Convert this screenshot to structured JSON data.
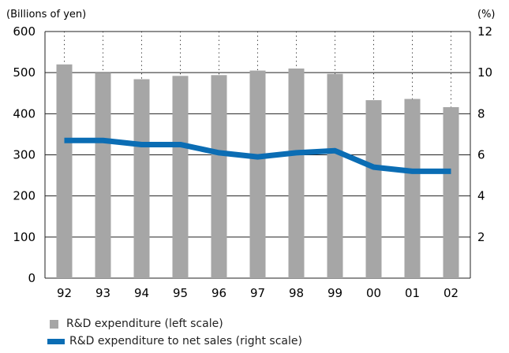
{
  "chart_data": {
    "type": "bar",
    "categories": [
      "92",
      "93",
      "94",
      "95",
      "96",
      "97",
      "98",
      "99",
      "00",
      "01",
      "02"
    ],
    "left_axis": {
      "unit": "(Billions of yen)",
      "ylim": [
        0,
        600
      ],
      "ticks": [
        0,
        100,
        200,
        300,
        400,
        500,
        600
      ]
    },
    "right_axis": {
      "unit": "(%)",
      "ylim": [
        0,
        12
      ],
      "ticks": [
        2,
        4,
        6,
        8,
        10,
        12
      ]
    },
    "series": [
      {
        "name": "R&D expenditure (left scale)",
        "type": "bar",
        "axis": "left",
        "values": [
          520,
          500,
          484,
          492,
          494,
          505,
          510,
          497,
          433,
          436,
          416
        ],
        "color": "#a6a6a6"
      },
      {
        "name": "R&D expenditure to net sales (right scale)",
        "type": "line",
        "axis": "right",
        "values": [
          6.7,
          6.7,
          6.5,
          6.5,
          6.1,
          5.9,
          6.1,
          6.2,
          5.4,
          5.2,
          5.2
        ],
        "color": "#0b6db4"
      }
    ],
    "grid": "horizontal solid lines, vertical dotted lines at categories",
    "legend": "bottom-left"
  }
}
